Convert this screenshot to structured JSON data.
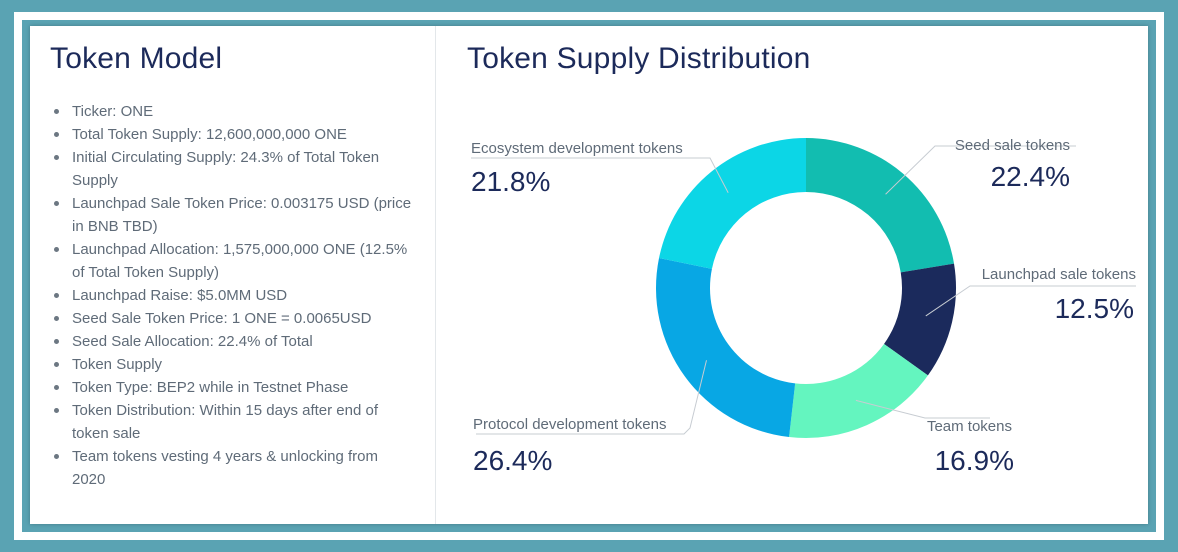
{
  "left": {
    "title": "Token Model",
    "items": [
      "Ticker: ONE",
      "Total Token Supply: 12,600,000,000 ONE",
      "Initial Circulating Supply: 24.3% of Total Token Supply",
      "Launchpad Sale Token Price: 0.003175 USD (price in BNB TBD)",
      "Launchpad Allocation: 1,575,000,000 ONE (12.5% of Total Token Supply)",
      "Launchpad Raise: $5.0MM USD",
      "Seed Sale Token Price: 1 ONE = 0.0065USD",
      "Seed Sale Allocation: 22.4% of Total",
      "Token Supply",
      "Token Type: BEP2 while in Testnet Phase",
      "Token Distribution: Within 15 days after end of token sale",
      "Team tokens vesting 4 years & unlocking from 2020"
    ]
  },
  "chart_data": {
    "type": "pie",
    "title": "Token Supply Distribution",
    "donut": true,
    "series": [
      {
        "name": "Seed sale tokens",
        "value": 22.4,
        "label": "22.4%",
        "color": "#12bdb0"
      },
      {
        "name": "Launchpad sale tokens",
        "value": 12.5,
        "label": "12.5%",
        "color": "#1b2a5c"
      },
      {
        "name": "Team tokens",
        "value": 16.9,
        "label": "16.9%",
        "color": "#64f5bf"
      },
      {
        "name": "Protocol development tokens",
        "value": 26.4,
        "label": "26.4%",
        "color": "#08a7e4"
      },
      {
        "name": "Ecosystem development tokens",
        "value": 21.8,
        "label": "21.8%",
        "color": "#0cd6e6"
      }
    ]
  }
}
